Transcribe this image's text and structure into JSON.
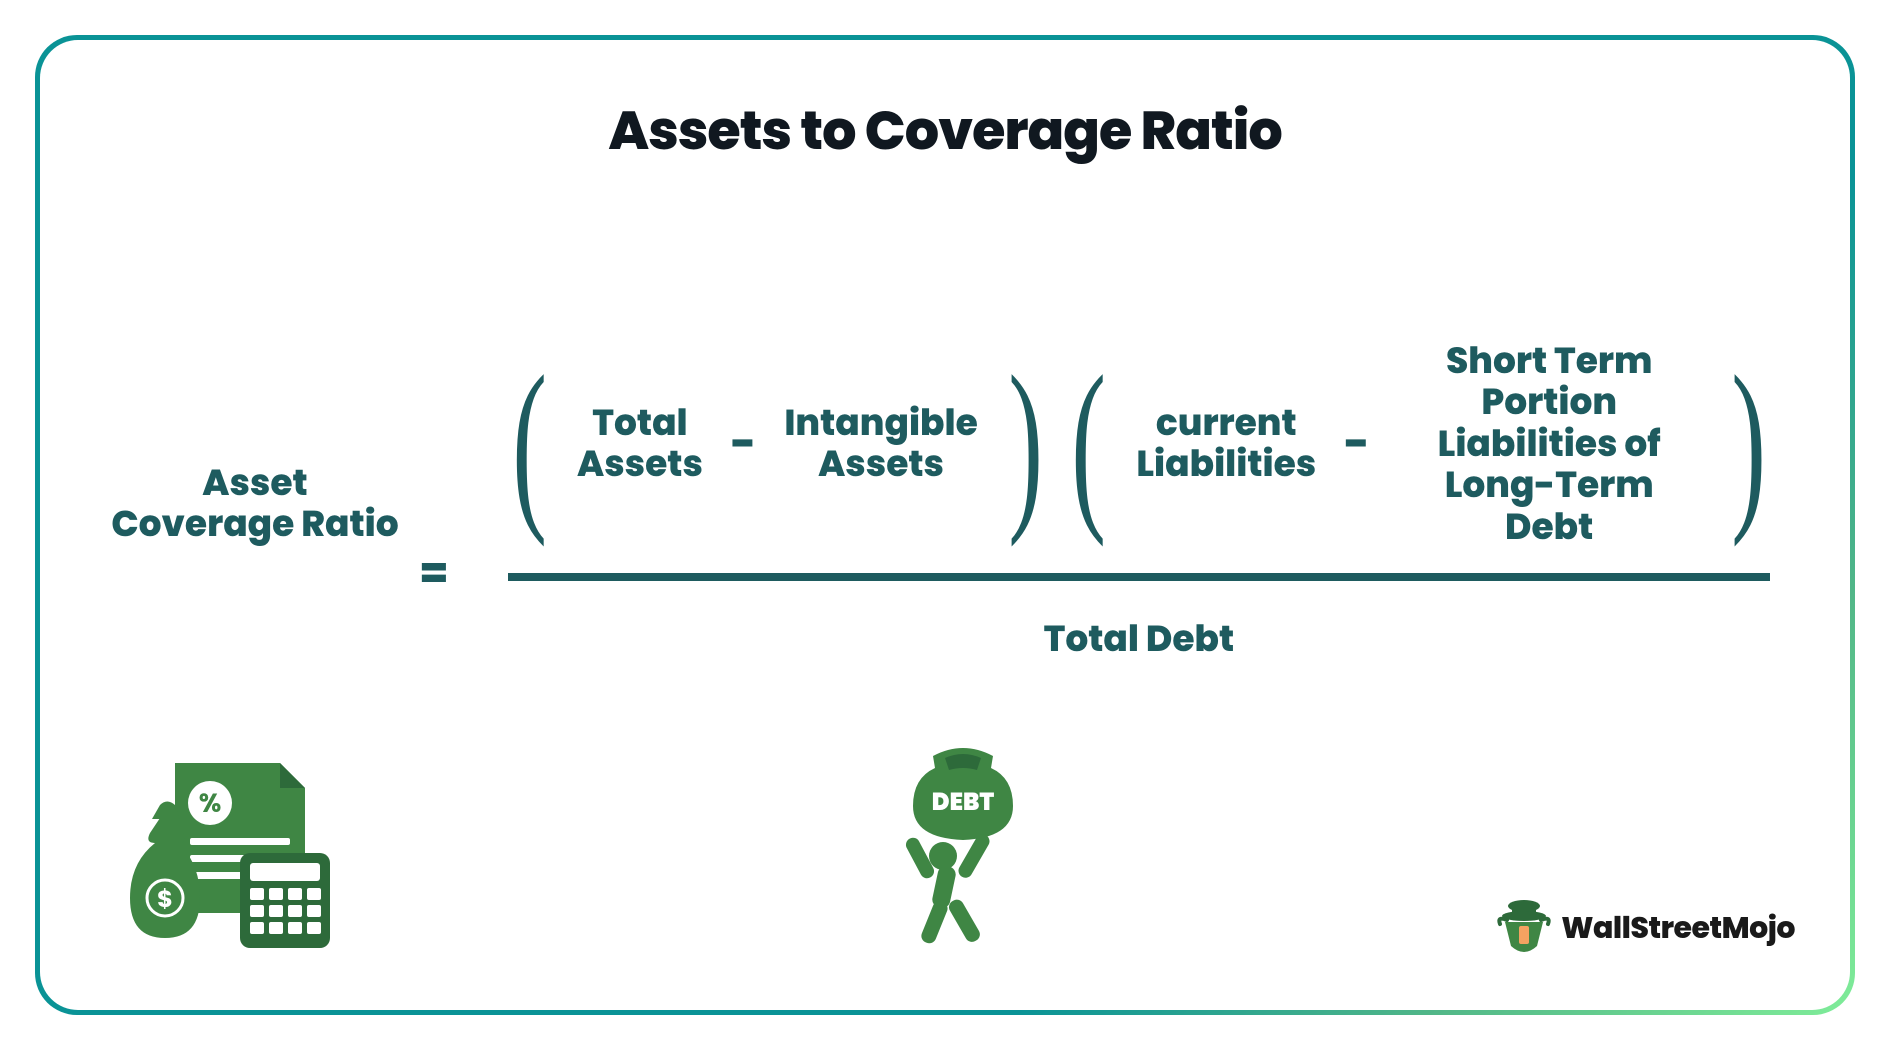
{
  "title": "Assets to Coverage Ratio",
  "formula": {
    "lhs": "Asset Coverage Ratio",
    "equals": "=",
    "numerator": {
      "group1": {
        "term1": "Total\nAssets",
        "op": "-",
        "term2": "Intangible\nAssets"
      },
      "group2": {
        "term1": "current\nLiabilities",
        "op": "-",
        "term2": "Short Term Portion\nLiabilities of Long-Term\nDebt"
      }
    },
    "denominator": "Total Debt"
  },
  "icons": {
    "assets": "assets-documents-bag-calculator",
    "debt": "person-carrying-debt-sack",
    "debt_bag_label": "DEBT"
  },
  "brand": {
    "name": "WallStreetMojo"
  },
  "style": {
    "title_fontsize": 54,
    "title_color": "#101820",
    "term_color": "#1e5b5f",
    "term_fontsize": 36,
    "lhs_fontsize": 36,
    "eq_fontsize": 42,
    "paren_fontsize": 190,
    "op_fontsize": 44,
    "denominator_fontsize": 36,
    "frac_line_color": "#1e5b5f",
    "frac_line_height": 8,
    "icon_green": "#3f8644",
    "icon_dark_green": "#2d6a3a",
    "border_gradient_start": "#0a9396",
    "border_gradient_mid": "#52b788",
    "border_gradient_end": "#80ed99",
    "border_radius": 42,
    "background": "#ffffff",
    "logo_fontsize": 30
  }
}
